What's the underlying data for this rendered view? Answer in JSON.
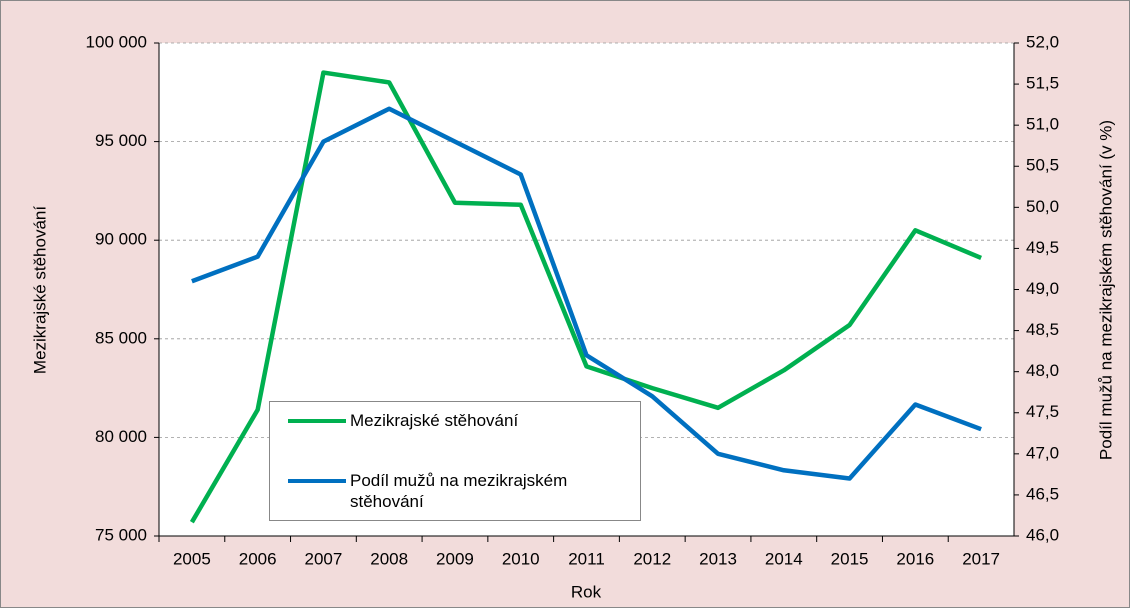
{
  "chart_data": {
    "type": "line",
    "x_label": "Rok",
    "y_label": "Mezikrajské stěhování",
    "y2_label": "Podíl mužů na mezikrajském stěhování (v %)",
    "categories": [
      "2005",
      "2006",
      "2007",
      "2008",
      "2009",
      "2010",
      "2011",
      "2012",
      "2013",
      "2014",
      "2015",
      "2016",
      "2017"
    ],
    "series": [
      {
        "name": "Mezikrajské stěhování",
        "color": "#00b050",
        "values": [
          75700,
          81400,
          98500,
          98000,
          91900,
          91800,
          83600,
          82500,
          81500,
          83400,
          85700,
          90500,
          89100
        ]
      },
      {
        "name": "Podíl mužů na mezikrajském stěhování",
        "color": "#0070c0",
        "axis": "y2",
        "values": [
          49.1,
          49.4,
          50.8,
          51.2,
          50.8,
          50.4,
          48.2,
          47.7,
          47.0,
          46.8,
          46.7,
          47.6,
          47.3
        ]
      }
    ],
    "ylim": [
      75000,
      100000
    ],
    "yticks": [
      {
        "value": 75000,
        "label": "75 000"
      },
      {
        "value": 80000,
        "label": "80 000"
      },
      {
        "value": 85000,
        "label": "85 000"
      },
      {
        "value": 90000,
        "label": "90 000"
      },
      {
        "value": 95000,
        "label": "95 000"
      },
      {
        "value": 100000,
        "label": "100 000"
      }
    ],
    "y2lim": [
      46,
      52
    ],
    "y2ticks": [
      {
        "value": 46,
        "label": "46,0"
      },
      {
        "value": 46.5,
        "label": "46,5"
      },
      {
        "value": 47,
        "label": "47,0"
      },
      {
        "value": 47.5,
        "label": "47,5"
      },
      {
        "value": 48,
        "label": "48,0"
      },
      {
        "value": 48.5,
        "label": "48,5"
      },
      {
        "value": 49,
        "label": "49,0"
      },
      {
        "value": 49.5,
        "label": "49,5"
      },
      {
        "value": 50,
        "label": "50,0"
      },
      {
        "value": 50.5,
        "label": "50,5"
      },
      {
        "value": 51,
        "label": "51,0"
      },
      {
        "value": 51.5,
        "label": "51,5"
      },
      {
        "value": 52,
        "label": "52,0"
      }
    ],
    "grid": true
  }
}
